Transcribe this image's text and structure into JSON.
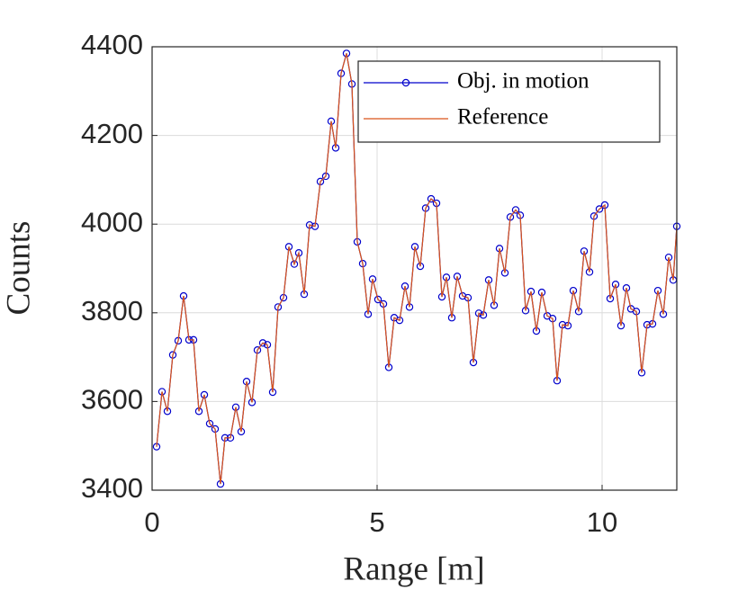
{
  "chart_data": {
    "type": "line",
    "xlabel": "Range [m]",
    "ylabel": "Counts",
    "x": [
      0.1,
      0.22,
      0.34,
      0.46,
      0.58,
      0.7,
      0.82,
      0.92,
      1.04,
      1.16,
      1.28,
      1.4,
      1.52,
      1.62,
      1.74,
      1.86,
      1.98,
      2.1,
      2.22,
      2.34,
      2.46,
      2.56,
      2.68,
      2.8,
      2.92,
      3.04,
      3.16,
      3.26,
      3.38,
      3.5,
      3.62,
      3.74,
      3.86,
      3.98,
      4.08,
      4.2,
      4.32,
      4.44,
      4.56,
      4.68,
      4.8,
      4.9,
      5.02,
      5.14,
      5.26,
      5.38,
      5.5,
      5.62,
      5.72,
      5.84,
      5.96,
      6.08,
      6.2,
      6.32,
      6.44,
      6.54,
      6.66,
      6.78,
      6.9,
      7.02,
      7.14,
      7.26,
      7.36,
      7.48,
      7.6,
      7.72,
      7.84,
      7.96,
      8.08,
      8.18,
      8.3,
      8.42,
      8.54,
      8.66,
      8.78,
      8.9,
      9.0,
      9.12,
      9.24,
      9.36,
      9.48,
      9.6,
      9.72,
      9.82,
      9.94,
      10.06,
      10.18,
      10.3,
      10.42,
      10.54,
      10.64,
      10.76,
      10.88,
      11.0,
      11.12,
      11.24,
      11.36,
      11.48,
      11.58,
      11.66
    ],
    "series": [
      {
        "name": "Obj. in motion",
        "color": "#0000cc",
        "marker": "circle",
        "values": [
          3498,
          3622,
          3578,
          3705,
          3737,
          3838,
          3739,
          3739,
          3578,
          3615,
          3550,
          3538,
          3414,
          3518,
          3518,
          3587,
          3532,
          3645,
          3598,
          3716,
          3732,
          3728,
          3621,
          3813,
          3834,
          3949,
          3910,
          3935,
          3842,
          3998,
          3995,
          4096,
          4108,
          4232,
          4172,
          4340,
          4385,
          4316,
          3960,
          3911,
          3797,
          3876,
          3830,
          3820,
          3677,
          3789,
          3783,
          3860,
          3813,
          3949,
          3905,
          4036,
          4057,
          4047,
          3836,
          3880,
          3789,
          3882,
          3838,
          3834,
          3688,
          3799,
          3795,
          3874,
          3817,
          3945,
          3890,
          4016,
          4032,
          4020,
          3805,
          3848,
          3759,
          3846,
          3793,
          3787,
          3647,
          3773,
          3771,
          3850,
          3803,
          3939,
          3892,
          4018,
          4034,
          4043,
          3832,
          3864,
          3771,
          3856,
          3809,
          3803,
          3665,
          3773,
          3775,
          3850,
          3797,
          3925,
          3874,
          3995
        ]
      },
      {
        "name": "Reference",
        "color": "#d95319",
        "values": [
          3498,
          3622,
          3578,
          3705,
          3737,
          3838,
          3739,
          3739,
          3578,
          3615,
          3550,
          3538,
          3414,
          3518,
          3518,
          3587,
          3532,
          3645,
          3598,
          3716,
          3732,
          3728,
          3621,
          3813,
          3834,
          3949,
          3910,
          3935,
          3842,
          3998,
          3995,
          4096,
          4108,
          4232,
          4172,
          4340,
          4385,
          4316,
          3960,
          3911,
          3797,
          3876,
          3830,
          3820,
          3677,
          3789,
          3783,
          3860,
          3813,
          3949,
          3905,
          4036,
          4057,
          4047,
          3836,
          3880,
          3789,
          3882,
          3838,
          3834,
          3688,
          3799,
          3795,
          3874,
          3817,
          3945,
          3890,
          4016,
          4032,
          4020,
          3805,
          3848,
          3759,
          3846,
          3793,
          3787,
          3647,
          3773,
          3771,
          3850,
          3803,
          3939,
          3892,
          4018,
          4034,
          4043,
          3832,
          3864,
          3771,
          3856,
          3809,
          3803,
          3665,
          3773,
          3775,
          3850,
          3797,
          3925,
          3874,
          3995
        ]
      }
    ],
    "xlim": [
      0,
      11.66
    ],
    "ylim": [
      3400,
      4400
    ],
    "xticks": [
      0,
      5,
      10
    ],
    "yticks": [
      3400,
      3600,
      3800,
      4000,
      4200,
      4400
    ],
    "grid": true,
    "legend": "top-right"
  }
}
